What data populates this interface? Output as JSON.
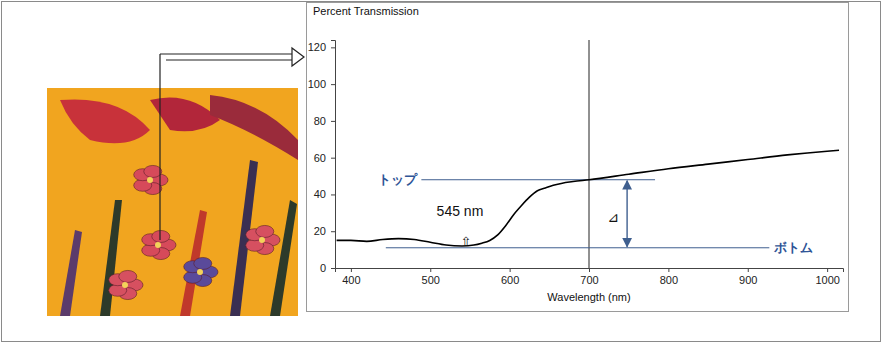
{
  "chart_data": {
    "type": "line",
    "title": "Percent Transmission",
    "x_label": "Wavelength (nm)",
    "x": [
      382,
      400,
      420,
      440,
      460,
      480,
      500,
      520,
      540,
      555,
      565,
      575,
      585,
      595,
      605,
      615,
      625,
      635,
      645,
      655,
      665,
      680,
      700,
      750,
      800,
      850,
      900,
      950,
      1000,
      1015
    ],
    "values": [
      15,
      15,
      14.5,
      15.5,
      16,
      15.5,
      14,
      12.5,
      12,
      12.5,
      13.5,
      15,
      18,
      23,
      29,
      34,
      38.5,
      42,
      43.5,
      45,
      46,
      47,
      48,
      51,
      54,
      56.5,
      59,
      61.5,
      63.5,
      64
    ],
    "color": "#000000",
    "xlim": [
      380,
      1020
    ],
    "xticks": [
      400,
      500,
      600,
      700,
      800,
      900,
      1000
    ],
    "ylim": [
      0,
      124
    ],
    "yticks": [
      0,
      20,
      40,
      60,
      80,
      100,
      120
    ],
    "grid": false,
    "annotations": [
      {
        "text": "トップ",
        "y": 48
      },
      {
        "text": "ボトム",
        "y": 11
      },
      {
        "text": "545 nm",
        "x": 545
      },
      {
        "text": "⇧",
        "x": 545
      },
      {
        "text": "⊿"
      }
    ],
    "vline": 700
  }
}
